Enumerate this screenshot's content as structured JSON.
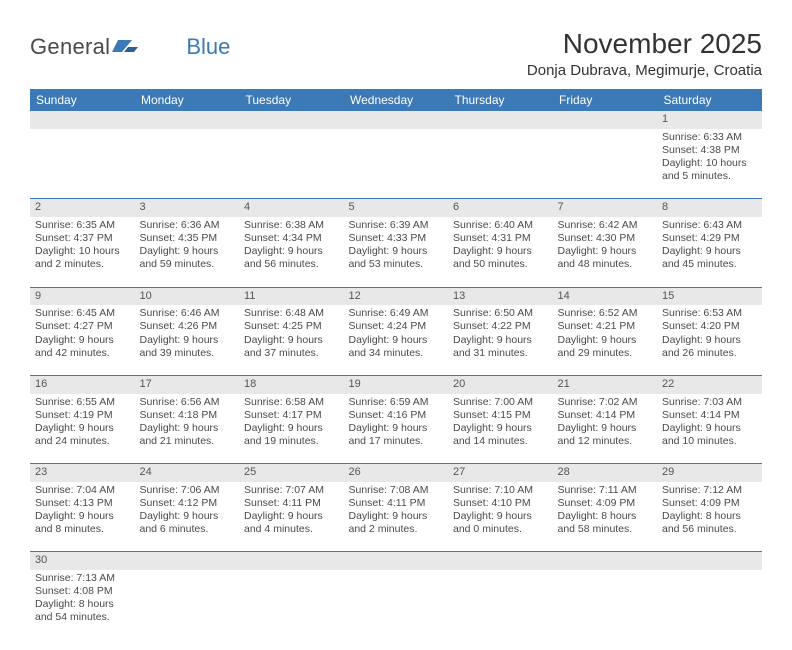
{
  "logo": {
    "general": "General",
    "blue": "Blue"
  },
  "title": "November 2025",
  "location": "Donja Dubrava, Megimurje, Croatia",
  "colors": {
    "header_bg": "#3b79b7",
    "header_text": "#ffffff",
    "daynum_bg": "#e8e8e8",
    "border": "#3b79b7",
    "text": "#4a4a4a",
    "title_text": "#333333",
    "page_bg": "#ffffff"
  },
  "typography": {
    "month_title_fontsize": 28,
    "location_fontsize": 15,
    "dayheader_fontsize": 12,
    "cell_fontsize": 10.5,
    "logo_fontsize": 22
  },
  "day_headers": [
    "Sunday",
    "Monday",
    "Tuesday",
    "Wednesday",
    "Thursday",
    "Friday",
    "Saturday"
  ],
  "weeks": [
    [
      null,
      null,
      null,
      null,
      null,
      null,
      {
        "n": "1",
        "sunrise": "Sunrise: 6:33 AM",
        "sunset": "Sunset: 4:38 PM",
        "daylight": "Daylight: 10 hours and 5 minutes."
      }
    ],
    [
      {
        "n": "2",
        "sunrise": "Sunrise: 6:35 AM",
        "sunset": "Sunset: 4:37 PM",
        "daylight": "Daylight: 10 hours and 2 minutes."
      },
      {
        "n": "3",
        "sunrise": "Sunrise: 6:36 AM",
        "sunset": "Sunset: 4:35 PM",
        "daylight": "Daylight: 9 hours and 59 minutes."
      },
      {
        "n": "4",
        "sunrise": "Sunrise: 6:38 AM",
        "sunset": "Sunset: 4:34 PM",
        "daylight": "Daylight: 9 hours and 56 minutes."
      },
      {
        "n": "5",
        "sunrise": "Sunrise: 6:39 AM",
        "sunset": "Sunset: 4:33 PM",
        "daylight": "Daylight: 9 hours and 53 minutes."
      },
      {
        "n": "6",
        "sunrise": "Sunrise: 6:40 AM",
        "sunset": "Sunset: 4:31 PM",
        "daylight": "Daylight: 9 hours and 50 minutes."
      },
      {
        "n": "7",
        "sunrise": "Sunrise: 6:42 AM",
        "sunset": "Sunset: 4:30 PM",
        "daylight": "Daylight: 9 hours and 48 minutes."
      },
      {
        "n": "8",
        "sunrise": "Sunrise: 6:43 AM",
        "sunset": "Sunset: 4:29 PM",
        "daylight": "Daylight: 9 hours and 45 minutes."
      }
    ],
    [
      {
        "n": "9",
        "sunrise": "Sunrise: 6:45 AM",
        "sunset": "Sunset: 4:27 PM",
        "daylight": "Daylight: 9 hours and 42 minutes."
      },
      {
        "n": "10",
        "sunrise": "Sunrise: 6:46 AM",
        "sunset": "Sunset: 4:26 PM",
        "daylight": "Daylight: 9 hours and 39 minutes."
      },
      {
        "n": "11",
        "sunrise": "Sunrise: 6:48 AM",
        "sunset": "Sunset: 4:25 PM",
        "daylight": "Daylight: 9 hours and 37 minutes."
      },
      {
        "n": "12",
        "sunrise": "Sunrise: 6:49 AM",
        "sunset": "Sunset: 4:24 PM",
        "daylight": "Daylight: 9 hours and 34 minutes."
      },
      {
        "n": "13",
        "sunrise": "Sunrise: 6:50 AM",
        "sunset": "Sunset: 4:22 PM",
        "daylight": "Daylight: 9 hours and 31 minutes."
      },
      {
        "n": "14",
        "sunrise": "Sunrise: 6:52 AM",
        "sunset": "Sunset: 4:21 PM",
        "daylight": "Daylight: 9 hours and 29 minutes."
      },
      {
        "n": "15",
        "sunrise": "Sunrise: 6:53 AM",
        "sunset": "Sunset: 4:20 PM",
        "daylight": "Daylight: 9 hours and 26 minutes."
      }
    ],
    [
      {
        "n": "16",
        "sunrise": "Sunrise: 6:55 AM",
        "sunset": "Sunset: 4:19 PM",
        "daylight": "Daylight: 9 hours and 24 minutes."
      },
      {
        "n": "17",
        "sunrise": "Sunrise: 6:56 AM",
        "sunset": "Sunset: 4:18 PM",
        "daylight": "Daylight: 9 hours and 21 minutes."
      },
      {
        "n": "18",
        "sunrise": "Sunrise: 6:58 AM",
        "sunset": "Sunset: 4:17 PM",
        "daylight": "Daylight: 9 hours and 19 minutes."
      },
      {
        "n": "19",
        "sunrise": "Sunrise: 6:59 AM",
        "sunset": "Sunset: 4:16 PM",
        "daylight": "Daylight: 9 hours and 17 minutes."
      },
      {
        "n": "20",
        "sunrise": "Sunrise: 7:00 AM",
        "sunset": "Sunset: 4:15 PM",
        "daylight": "Daylight: 9 hours and 14 minutes."
      },
      {
        "n": "21",
        "sunrise": "Sunrise: 7:02 AM",
        "sunset": "Sunset: 4:14 PM",
        "daylight": "Daylight: 9 hours and 12 minutes."
      },
      {
        "n": "22",
        "sunrise": "Sunrise: 7:03 AM",
        "sunset": "Sunset: 4:14 PM",
        "daylight": "Daylight: 9 hours and 10 minutes."
      }
    ],
    [
      {
        "n": "23",
        "sunrise": "Sunrise: 7:04 AM",
        "sunset": "Sunset: 4:13 PM",
        "daylight": "Daylight: 9 hours and 8 minutes."
      },
      {
        "n": "24",
        "sunrise": "Sunrise: 7:06 AM",
        "sunset": "Sunset: 4:12 PM",
        "daylight": "Daylight: 9 hours and 6 minutes."
      },
      {
        "n": "25",
        "sunrise": "Sunrise: 7:07 AM",
        "sunset": "Sunset: 4:11 PM",
        "daylight": "Daylight: 9 hours and 4 minutes."
      },
      {
        "n": "26",
        "sunrise": "Sunrise: 7:08 AM",
        "sunset": "Sunset: 4:11 PM",
        "daylight": "Daylight: 9 hours and 2 minutes."
      },
      {
        "n": "27",
        "sunrise": "Sunrise: 7:10 AM",
        "sunset": "Sunset: 4:10 PM",
        "daylight": "Daylight: 9 hours and 0 minutes."
      },
      {
        "n": "28",
        "sunrise": "Sunrise: 7:11 AM",
        "sunset": "Sunset: 4:09 PM",
        "daylight": "Daylight: 8 hours and 58 minutes."
      },
      {
        "n": "29",
        "sunrise": "Sunrise: 7:12 AM",
        "sunset": "Sunset: 4:09 PM",
        "daylight": "Daylight: 8 hours and 56 minutes."
      }
    ],
    [
      {
        "n": "30",
        "sunrise": "Sunrise: 7:13 AM",
        "sunset": "Sunset: 4:08 PM",
        "daylight": "Daylight: 8 hours and 54 minutes."
      },
      null,
      null,
      null,
      null,
      null,
      null
    ]
  ]
}
